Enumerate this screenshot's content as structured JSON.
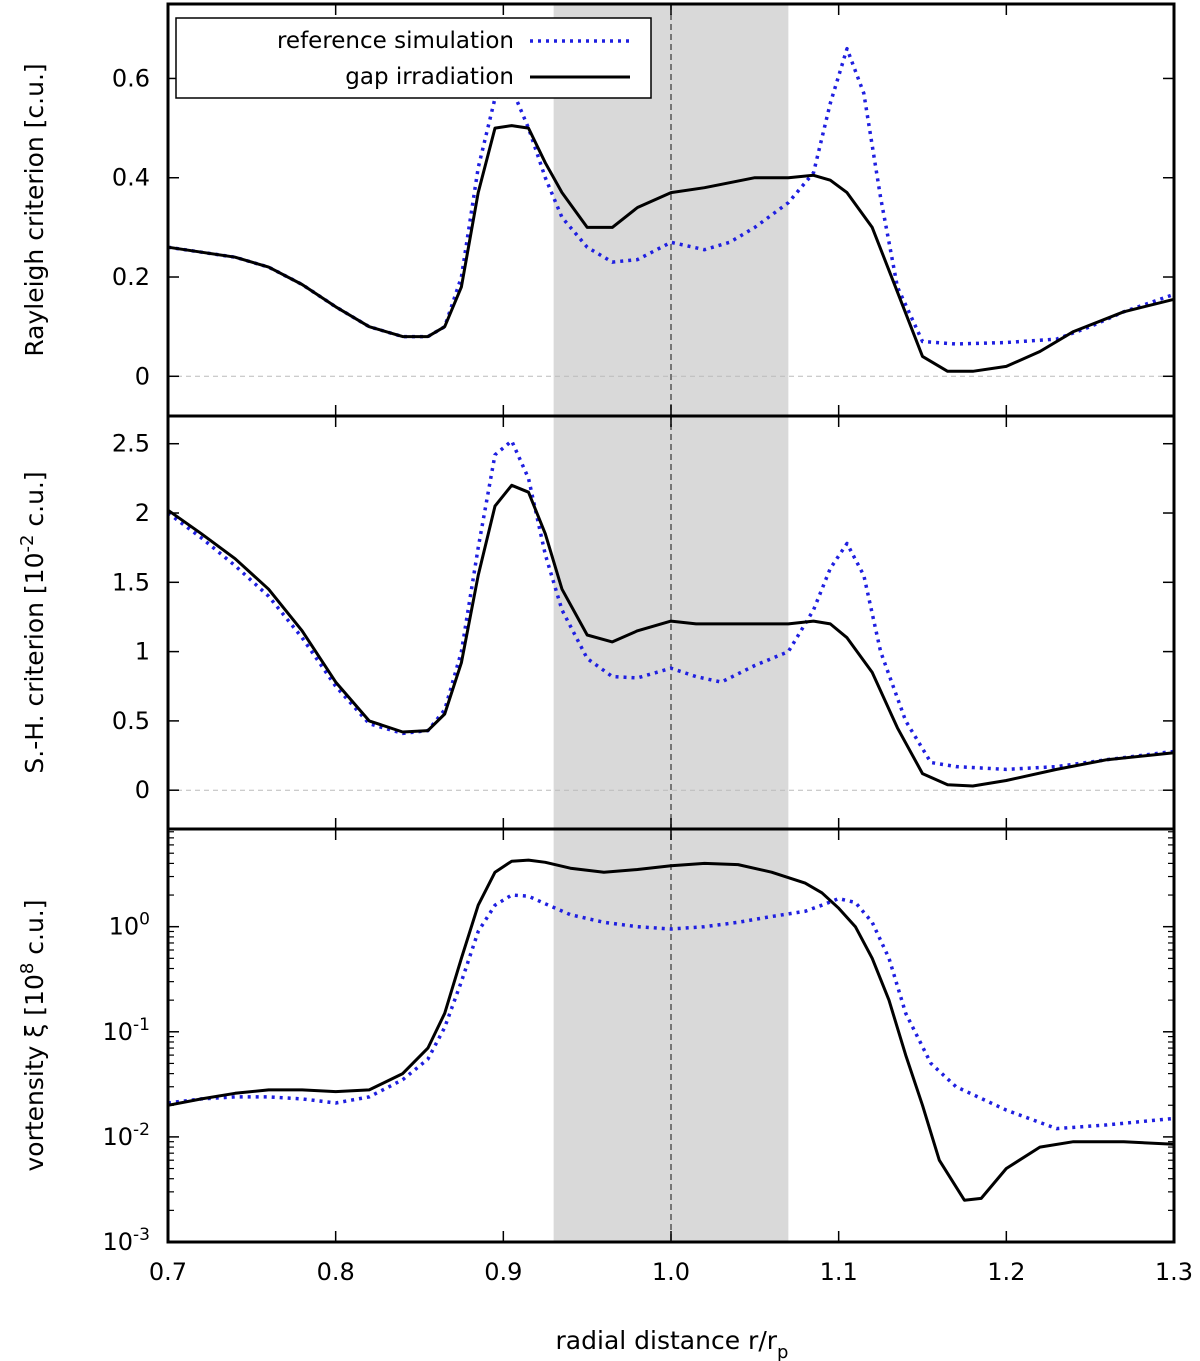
{
  "chart_data": {
    "type": "line",
    "x_label": "radial distance r/r",
    "x_label_sub": "p",
    "xlim": [
      0.7,
      1.3
    ],
    "x_ticks": [
      {
        "value": 0.7,
        "label": "0.7"
      },
      {
        "value": 0.8,
        "label": "0.8"
      },
      {
        "value": 0.9,
        "label": "0.9"
      },
      {
        "value": 1.0,
        "label": "1.0"
      },
      {
        "value": 1.1,
        "label": "1.1"
      },
      {
        "value": 1.2,
        "label": "1.2"
      },
      {
        "value": 1.3,
        "label": "1.3"
      }
    ],
    "shaded_region": {
      "x_start": 0.93,
      "x_end": 1.07,
      "color": "#d9d9d9"
    },
    "vertical_line_x": 1.0,
    "legend": [
      {
        "name": "reference simulation",
        "color": "#1f1fe0",
        "style": "dotted"
      },
      {
        "name": "gap irradiation",
        "color": "#000000",
        "style": "solid"
      }
    ],
    "panels": [
      {
        "id": "rayleigh",
        "ylabel": "Rayleigh criterion [c.u.]",
        "scale": "linear",
        "ylim": [
          -0.08,
          0.75
        ],
        "y_ticks": [
          {
            "value": 0,
            "label": "0"
          },
          {
            "value": 0.2,
            "label": "0.2"
          },
          {
            "value": 0.4,
            "label": "0.4"
          },
          {
            "value": 0.6,
            "label": "0.6"
          }
        ],
        "zero_line": true,
        "series": [
          {
            "name": "reference simulation",
            "x": [
              0.7,
              0.72,
              0.74,
              0.76,
              0.78,
              0.8,
              0.82,
              0.84,
              0.855,
              0.865,
              0.875,
              0.885,
              0.895,
              0.905,
              0.915,
              0.925,
              0.935,
              0.95,
              0.965,
              0.98,
              1.0,
              1.02,
              1.035,
              1.05,
              1.07,
              1.085,
              1.095,
              1.105,
              1.115,
              1.125,
              1.135,
              1.15,
              1.17,
              1.2,
              1.23,
              1.25,
              1.27,
              1.3
            ],
            "y": [
              0.26,
              0.25,
              0.24,
              0.22,
              0.185,
              0.14,
              0.1,
              0.08,
              0.08,
              0.1,
              0.2,
              0.42,
              0.56,
              0.58,
              0.5,
              0.4,
              0.32,
              0.26,
              0.23,
              0.235,
              0.27,
              0.255,
              0.27,
              0.3,
              0.35,
              0.41,
              0.55,
              0.66,
              0.57,
              0.36,
              0.18,
              0.07,
              0.065,
              0.068,
              0.075,
              0.1,
              0.13,
              0.165
            ]
          },
          {
            "name": "gap irradiation",
            "x": [
              0.7,
              0.72,
              0.74,
              0.76,
              0.78,
              0.8,
              0.82,
              0.84,
              0.855,
              0.865,
              0.875,
              0.885,
              0.895,
              0.905,
              0.915,
              0.925,
              0.935,
              0.95,
              0.965,
              0.98,
              1.0,
              1.02,
              1.035,
              1.05,
              1.07,
              1.085,
              1.095,
              1.105,
              1.12,
              1.135,
              1.15,
              1.165,
              1.18,
              1.2,
              1.22,
              1.24,
              1.27,
              1.3
            ],
            "y": [
              0.26,
              0.25,
              0.24,
              0.22,
              0.185,
              0.14,
              0.1,
              0.08,
              0.08,
              0.1,
              0.18,
              0.37,
              0.5,
              0.505,
              0.5,
              0.43,
              0.37,
              0.3,
              0.3,
              0.34,
              0.37,
              0.38,
              0.39,
              0.4,
              0.4,
              0.405,
              0.395,
              0.37,
              0.3,
              0.17,
              0.04,
              0.01,
              0.01,
              0.02,
              0.05,
              0.09,
              0.13,
              0.155
            ]
          }
        ]
      },
      {
        "id": "solberg-hoiland",
        "ylabel": "S.-H. criterion [10",
        "ylabel_sup": "-2",
        "ylabel_end": " c.u.]",
        "scale": "linear",
        "ylim": [
          -0.28,
          2.7
        ],
        "y_ticks": [
          {
            "value": 0,
            "label": "0"
          },
          {
            "value": 0.5,
            "label": "0.5"
          },
          {
            "value": 1,
            "label": "1"
          },
          {
            "value": 1.5,
            "label": "1.5"
          },
          {
            "value": 2,
            "label": "2"
          },
          {
            "value": 2.5,
            "label": "2.5"
          }
        ],
        "zero_line": true,
        "series": [
          {
            "name": "reference simulation",
            "x": [
              0.7,
              0.72,
              0.74,
              0.76,
              0.78,
              0.8,
              0.82,
              0.84,
              0.855,
              0.865,
              0.875,
              0.885,
              0.895,
              0.905,
              0.915,
              0.925,
              0.935,
              0.95,
              0.965,
              0.98,
              1.0,
              1.015,
              1.03,
              1.05,
              1.07,
              1.085,
              1.095,
              1.105,
              1.115,
              1.125,
              1.14,
              1.155,
              1.17,
              1.2,
              1.23,
              1.26,
              1.3
            ],
            "y": [
              2.0,
              1.82,
              1.62,
              1.4,
              1.1,
              0.75,
              0.48,
              0.41,
              0.43,
              0.58,
              1.0,
              1.75,
              2.42,
              2.52,
              2.25,
              1.7,
              1.3,
              0.95,
              0.82,
              0.81,
              0.88,
              0.82,
              0.78,
              0.9,
              1.0,
              1.3,
              1.6,
              1.78,
              1.55,
              1.0,
              0.5,
              0.2,
              0.17,
              0.15,
              0.17,
              0.22,
              0.28
            ]
          },
          {
            "name": "gap irradiation",
            "x": [
              0.7,
              0.72,
              0.74,
              0.76,
              0.78,
              0.8,
              0.82,
              0.84,
              0.855,
              0.865,
              0.875,
              0.885,
              0.895,
              0.905,
              0.915,
              0.925,
              0.935,
              0.95,
              0.965,
              0.98,
              1.0,
              1.015,
              1.03,
              1.05,
              1.07,
              1.085,
              1.095,
              1.105,
              1.12,
              1.135,
              1.15,
              1.165,
              1.18,
              1.2,
              1.23,
              1.26,
              1.3
            ],
            "y": [
              2.02,
              1.85,
              1.67,
              1.45,
              1.15,
              0.78,
              0.5,
              0.42,
              0.43,
              0.55,
              0.92,
              1.55,
              2.05,
              2.2,
              2.15,
              1.85,
              1.45,
              1.12,
              1.07,
              1.15,
              1.22,
              1.2,
              1.2,
              1.2,
              1.2,
              1.22,
              1.2,
              1.1,
              0.85,
              0.45,
              0.12,
              0.04,
              0.03,
              0.07,
              0.15,
              0.22,
              0.27
            ]
          }
        ]
      },
      {
        "id": "vortensity",
        "ylabel": "vortensity ξ [10",
        "ylabel_sup": "8",
        "ylabel_end": " c.u.]",
        "scale": "log",
        "ylim": [
          0.001,
          8.5
        ],
        "y_ticks": [
          {
            "value": 0.001,
            "base": "10",
            "exp": "-3"
          },
          {
            "value": 0.01,
            "base": "10",
            "exp": "-2"
          },
          {
            "value": 0.1,
            "base": "10",
            "exp": "-1"
          },
          {
            "value": 1,
            "base": "10",
            "exp": "0"
          }
        ],
        "zero_line": false,
        "series": [
          {
            "name": "reference simulation",
            "x": [
              0.7,
              0.72,
              0.74,
              0.76,
              0.78,
              0.8,
              0.82,
              0.84,
              0.855,
              0.865,
              0.875,
              0.885,
              0.895,
              0.905,
              0.915,
              0.925,
              0.94,
              0.96,
              0.98,
              1.0,
              1.02,
              1.04,
              1.06,
              1.08,
              1.09,
              1.1,
              1.11,
              1.12,
              1.13,
              1.14,
              1.155,
              1.17,
              1.2,
              1.23,
              1.26,
              1.3
            ],
            "y": [
              0.021,
              0.023,
              0.024,
              0.024,
              0.023,
              0.021,
              0.024,
              0.035,
              0.055,
              0.11,
              0.3,
              0.9,
              1.6,
              2.0,
              1.95,
              1.65,
              1.3,
              1.1,
              1.0,
              0.95,
              1.0,
              1.1,
              1.25,
              1.4,
              1.6,
              1.85,
              1.7,
              1.1,
              0.5,
              0.15,
              0.05,
              0.03,
              0.018,
              0.012,
              0.013,
              0.015
            ]
          },
          {
            "name": "gap irradiation",
            "x": [
              0.7,
              0.72,
              0.74,
              0.76,
              0.78,
              0.8,
              0.82,
              0.84,
              0.855,
              0.865,
              0.875,
              0.885,
              0.895,
              0.905,
              0.915,
              0.925,
              0.94,
              0.96,
              0.98,
              1.0,
              1.02,
              1.04,
              1.06,
              1.08,
              1.09,
              1.1,
              1.11,
              1.12,
              1.13,
              1.14,
              1.15,
              1.16,
              1.175,
              1.185,
              1.2,
              1.22,
              1.24,
              1.27,
              1.3
            ],
            "y": [
              0.02,
              0.023,
              0.026,
              0.028,
              0.028,
              0.027,
              0.028,
              0.04,
              0.07,
              0.15,
              0.5,
              1.6,
              3.3,
              4.2,
              4.3,
              4.1,
              3.6,
              3.3,
              3.5,
              3.8,
              4.0,
              3.9,
              3.3,
              2.6,
              2.1,
              1.5,
              1.0,
              0.5,
              0.2,
              0.06,
              0.02,
              0.006,
              0.0025,
              0.0026,
              0.005,
              0.008,
              0.009,
              0.009,
              0.0085
            ]
          }
        ]
      }
    ]
  }
}
